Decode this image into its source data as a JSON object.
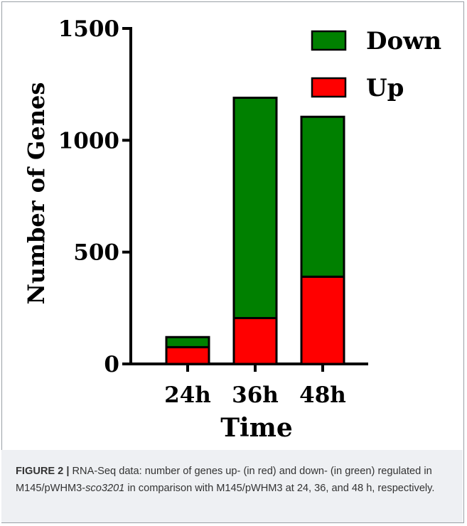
{
  "chart_data": {
    "type": "bar",
    "stacked": true,
    "categories": [
      "24h",
      "36h",
      "48h"
    ],
    "series": [
      {
        "name": "Up",
        "color": "#ff0000",
        "values": [
          75,
          205,
          390
        ]
      },
      {
        "name": "Down",
        "color": "#008000",
        "values": [
          45,
          985,
          715
        ]
      }
    ],
    "xlabel": "Time",
    "ylabel": "Number of Genes",
    "ylim": [
      0,
      1500
    ],
    "yticks": [
      "0",
      "500",
      "1000",
      "1500"
    ],
    "legend": {
      "placement": "top-right",
      "entries": [
        "Down",
        "Up"
      ]
    },
    "grid": false
  },
  "caption": {
    "label": "FIGURE 2 |",
    "text_part1": " RNA-Seq data: number of genes up- (in red) and down- (in green) regulated in M145/pWHM3-",
    "italic": "sco3201",
    "text_part2": " in comparison with M145/pWHM3 at 24, 36, and 48 h, respectively."
  }
}
